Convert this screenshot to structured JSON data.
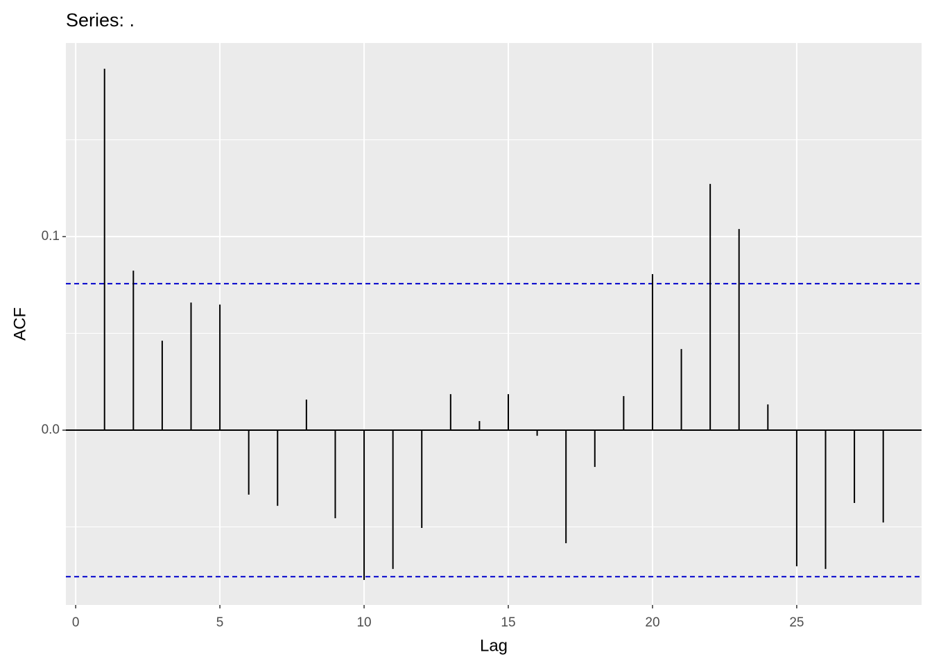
{
  "chart_data": {
    "type": "acf",
    "title": "Series: .",
    "xlabel": "Lag",
    "ylabel": "ACF",
    "x": [
      1,
      2,
      3,
      4,
      5,
      6,
      7,
      8,
      9,
      10,
      11,
      12,
      13,
      14,
      15,
      16,
      17,
      18,
      19,
      20,
      21,
      22,
      23,
      24,
      25,
      26,
      27,
      28
    ],
    "values": [
      0.1867,
      0.0824,
      0.0462,
      0.0659,
      0.0649,
      -0.0333,
      -0.0391,
      0.0158,
      -0.0455,
      -0.0774,
      -0.0717,
      -0.0505,
      0.0186,
      0.0047,
      0.0186,
      -0.0029,
      -0.0584,
      -0.019,
      0.0176,
      0.0806,
      0.0419,
      0.1272,
      0.1039,
      0.0133,
      -0.0703,
      -0.0717,
      -0.0376,
      -0.0477
    ],
    "color": "#000000",
    "confidence_lines": [
      0.0757,
      -0.0757
    ],
    "confidence_color": "#0000cc",
    "xlim": [
      -0.34,
      29.33
    ],
    "ylim": [
      -0.0903,
      0.2
    ],
    "xticks": [
      0,
      5,
      10,
      15,
      20,
      25
    ],
    "yticks": [
      {
        "value": 0,
        "label": "0.0"
      },
      0.1
    ],
    "grid": true
  }
}
